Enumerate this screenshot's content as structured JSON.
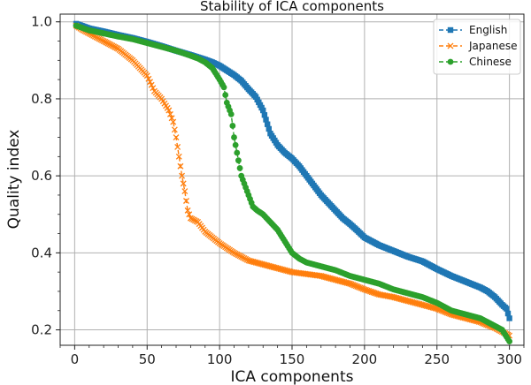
{
  "chart_data": {
    "type": "line",
    "title": "Stability of ICA components",
    "xlabel": "ICA components",
    "ylabel": "Quality index",
    "xlim": [
      -10,
      310
    ],
    "ylim": [
      0.16,
      1.02
    ],
    "xticks": [
      0,
      50,
      100,
      150,
      200,
      250,
      300
    ],
    "yticks": [
      0.2,
      0.4,
      0.6,
      0.8,
      1.0
    ],
    "ytick_labels": [
      "0.2",
      "0.4",
      "0.6",
      "0.8",
      "1.0"
    ],
    "grid": true,
    "legend_position": "top-right",
    "series": [
      {
        "name": "English",
        "color": "#1f77b4",
        "marker": "square",
        "x": [
          1,
          10,
          20,
          30,
          40,
          50,
          60,
          70,
          80,
          90,
          95,
          100,
          105,
          110,
          115,
          120,
          125,
          130,
          135,
          140,
          145,
          150,
          155,
          160,
          165,
          170,
          175,
          180,
          185,
          190,
          195,
          200,
          210,
          220,
          230,
          240,
          250,
          260,
          270,
          280,
          285,
          290,
          295,
          298,
          300
        ],
        "y": [
          0.995,
          0.983,
          0.975,
          0.966,
          0.958,
          0.948,
          0.937,
          0.925,
          0.914,
          0.902,
          0.895,
          0.886,
          0.874,
          0.862,
          0.847,
          0.825,
          0.805,
          0.77,
          0.71,
          0.68,
          0.66,
          0.645,
          0.625,
          0.6,
          0.575,
          0.55,
          0.53,
          0.51,
          0.49,
          0.475,
          0.458,
          0.44,
          0.42,
          0.405,
          0.39,
          0.378,
          0.358,
          0.34,
          0.325,
          0.31,
          0.3,
          0.285,
          0.265,
          0.255,
          0.23
        ]
      },
      {
        "name": "Japanese",
        "color": "#ff7f0e",
        "marker": "x",
        "x": [
          1,
          5,
          10,
          20,
          30,
          40,
          45,
          50,
          55,
          60,
          65,
          68,
          70,
          72,
          74,
          76,
          78,
          80,
          85,
          90,
          95,
          100,
          110,
          120,
          130,
          140,
          150,
          160,
          170,
          180,
          190,
          200,
          210,
          220,
          230,
          240,
          250,
          260,
          270,
          280,
          285,
          290,
          295,
          300
        ],
        "y": [
          0.99,
          0.98,
          0.97,
          0.95,
          0.93,
          0.9,
          0.88,
          0.86,
          0.82,
          0.8,
          0.77,
          0.74,
          0.7,
          0.65,
          0.6,
          0.56,
          0.51,
          0.49,
          0.48,
          0.455,
          0.44,
          0.425,
          0.4,
          0.38,
          0.37,
          0.36,
          0.35,
          0.345,
          0.34,
          0.33,
          0.32,
          0.305,
          0.292,
          0.285,
          0.275,
          0.265,
          0.255,
          0.24,
          0.23,
          0.22,
          0.212,
          0.205,
          0.195,
          0.185
        ]
      },
      {
        "name": "Chinese",
        "color": "#2ca02c",
        "marker": "circle",
        "x": [
          1,
          10,
          20,
          30,
          40,
          50,
          60,
          70,
          80,
          85,
          90,
          95,
          100,
          103,
          105,
          108,
          110,
          112,
          115,
          118,
          120,
          123,
          126,
          130,
          140,
          145,
          150,
          155,
          160,
          170,
          180,
          190,
          200,
          210,
          220,
          230,
          240,
          250,
          260,
          270,
          280,
          285,
          290,
          295,
          300
        ],
        "y": [
          0.99,
          0.978,
          0.97,
          0.962,
          0.955,
          0.945,
          0.935,
          0.925,
          0.912,
          0.905,
          0.895,
          0.88,
          0.85,
          0.83,
          0.79,
          0.76,
          0.7,
          0.66,
          0.6,
          0.57,
          0.55,
          0.52,
          0.51,
          0.5,
          0.46,
          0.43,
          0.4,
          0.385,
          0.375,
          0.365,
          0.355,
          0.34,
          0.33,
          0.32,
          0.305,
          0.295,
          0.285,
          0.27,
          0.25,
          0.24,
          0.23,
          0.22,
          0.21,
          0.2,
          0.17
        ]
      }
    ]
  }
}
